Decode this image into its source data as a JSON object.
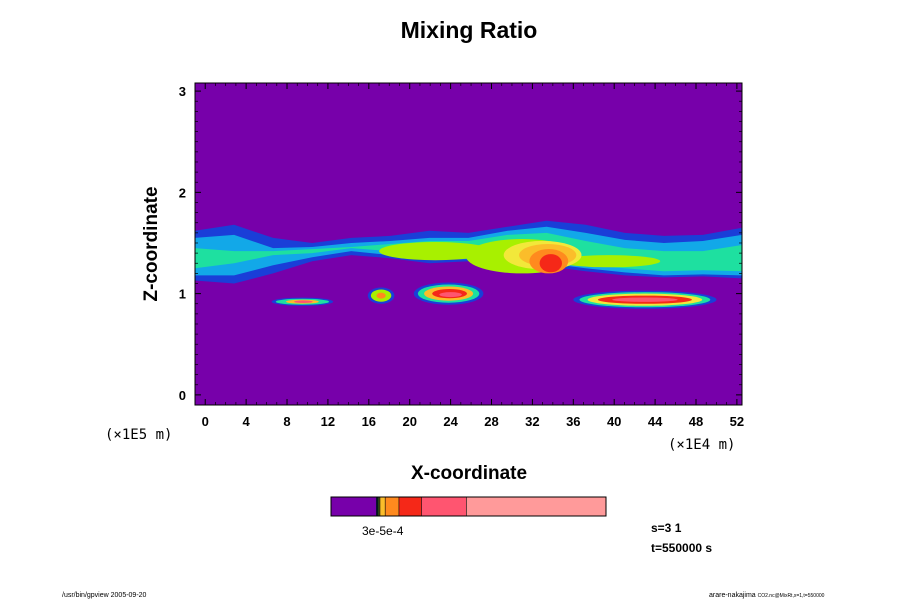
{
  "chart_data": {
    "type": "heatmap",
    "title": "Mixing Ratio",
    "xlabel": "X-coordinate",
    "ylabel": "Z-coordinate",
    "x_unit": "(×1E4 m)",
    "y_unit": "(×1E5 m)",
    "xlim": [
      -1,
      52.5
    ],
    "ylim": [
      -0.1,
      3.08
    ],
    "x_ticks": [
      "0",
      "4",
      "8",
      "12",
      "16",
      "20",
      "24",
      "28",
      "32",
      "36",
      "40",
      "44",
      "48",
      "52"
    ],
    "x_tick_values": [
      0,
      4,
      8,
      12,
      16,
      20,
      24,
      28,
      32,
      36,
      40,
      44,
      48,
      52
    ],
    "y_ticks": [
      "0",
      "1",
      "2",
      "3"
    ],
    "y_tick_values": [
      0,
      1,
      2,
      3
    ],
    "background_color": "#7700aa",
    "levels": [
      {
        "name": "level-1",
        "color": "#1a3ed8"
      },
      {
        "name": "level-2",
        "color": "#12a8e8"
      },
      {
        "name": "level-3",
        "color": "#1ee0a0"
      },
      {
        "name": "level-4",
        "color": "#a8f000"
      },
      {
        "name": "level-5",
        "color": "#f2e83a"
      },
      {
        "name": "level-6",
        "color": "#fbbd2a"
      },
      {
        "name": "level-7",
        "color": "#ff8a1e"
      },
      {
        "name": "level-8",
        "color": "#f52818"
      },
      {
        "name": "level-9",
        "color": "#ff5570"
      }
    ],
    "regions": [
      {
        "shape": "band",
        "level": 0,
        "x": [
          -1,
          52.5
        ],
        "bottom": [
          1.13,
          1.1,
          1.2,
          1.32,
          1.38,
          1.35,
          1.3,
          1.32,
          1.35,
          1.27,
          1.22,
          1.18,
          1.16,
          1.17,
          1.15
        ],
        "top": [
          1.62,
          1.68,
          1.55,
          1.5,
          1.55,
          1.57,
          1.62,
          1.6,
          1.66,
          1.72,
          1.68,
          1.6,
          1.57,
          1.58,
          1.65
        ]
      },
      {
        "shape": "band",
        "level": 1,
        "x": [
          -1,
          52.5
        ],
        "bottom": [
          1.18,
          1.18,
          1.28,
          1.36,
          1.42,
          1.38,
          1.34,
          1.34,
          1.38,
          1.3,
          1.25,
          1.21,
          1.18,
          1.19,
          1.18
        ],
        "top": [
          1.55,
          1.58,
          1.45,
          1.46,
          1.5,
          1.52,
          1.55,
          1.55,
          1.62,
          1.66,
          1.6,
          1.53,
          1.5,
          1.52,
          1.58
        ]
      },
      {
        "shape": "band",
        "level": 2,
        "x": [
          -1,
          52.5
        ],
        "bottom": [
          1.25,
          1.3,
          1.38,
          1.4,
          1.45,
          1.42,
          1.38,
          1.36,
          1.42,
          1.34,
          1.28,
          1.25,
          1.22,
          1.23,
          1.22
        ],
        "top": [
          1.45,
          1.42,
          1.42,
          1.44,
          1.46,
          1.49,
          1.52,
          1.52,
          1.58,
          1.6,
          1.52,
          1.45,
          1.42,
          1.42,
          1.48
        ]
      },
      {
        "shape": "ellipse",
        "level": 3,
        "cx": 22.5,
        "cy": 1.42,
        "rx": 5.5,
        "ry": 0.09
      },
      {
        "shape": "ellipse",
        "level": 3,
        "cx": 31.0,
        "cy": 1.37,
        "rx": 5.5,
        "ry": 0.17
      },
      {
        "shape": "ellipse",
        "level": 3,
        "cx": 39.5,
        "cy": 1.32,
        "rx": 5.0,
        "ry": 0.06
      },
      {
        "shape": "ellipse",
        "level": 4,
        "cx": 33.0,
        "cy": 1.38,
        "rx": 3.8,
        "ry": 0.14
      },
      {
        "shape": "ellipse",
        "level": 5,
        "cx": 33.5,
        "cy": 1.38,
        "rx": 2.8,
        "ry": 0.11
      },
      {
        "shape": "ellipse",
        "level": 6,
        "cx": 33.6,
        "cy": 1.32,
        "rx": 1.9,
        "ry": 0.12
      },
      {
        "shape": "ellipse",
        "level": 7,
        "cx": 33.8,
        "cy": 1.3,
        "rx": 1.1,
        "ry": 0.09
      },
      {
        "shape": "ellipse",
        "level": 0,
        "cx": 9.5,
        "cy": 0.92,
        "rx": 3.0,
        "ry": 0.04
      },
      {
        "shape": "ellipse",
        "level": 2,
        "cx": 9.5,
        "cy": 0.92,
        "rx": 2.6,
        "ry": 0.03
      },
      {
        "shape": "ellipse",
        "level": 5,
        "cx": 9.5,
        "cy": 0.92,
        "rx": 1.6,
        "ry": 0.02
      },
      {
        "shape": "ellipse",
        "level": 8,
        "cx": 9.6,
        "cy": 0.92,
        "rx": 0.9,
        "ry": 0.013
      },
      {
        "shape": "ellipse",
        "level": 0,
        "cx": 17.2,
        "cy": 0.98,
        "rx": 1.3,
        "ry": 0.08
      },
      {
        "shape": "ellipse",
        "level": 3,
        "cx": 17.2,
        "cy": 0.98,
        "rx": 1.0,
        "ry": 0.06
      },
      {
        "shape": "ellipse",
        "level": 6,
        "cx": 17.2,
        "cy": 0.98,
        "rx": 0.45,
        "ry": 0.03
      },
      {
        "shape": "ellipse",
        "level": 0,
        "cx": 23.8,
        "cy": 1.0,
        "rx": 3.4,
        "ry": 0.11
      },
      {
        "shape": "ellipse",
        "level": 2,
        "cx": 23.8,
        "cy": 1.0,
        "rx": 3.0,
        "ry": 0.09
      },
      {
        "shape": "ellipse",
        "level": 5,
        "cx": 23.8,
        "cy": 1.0,
        "rx": 2.4,
        "ry": 0.07
      },
      {
        "shape": "ellipse",
        "level": 7,
        "cx": 23.9,
        "cy": 1.0,
        "rx": 1.7,
        "ry": 0.045
      },
      {
        "shape": "ellipse",
        "level": 8,
        "cx": 24.0,
        "cy": 0.99,
        "rx": 1.1,
        "ry": 0.025
      },
      {
        "shape": "ellipse",
        "level": 0,
        "cx": 43.0,
        "cy": 0.94,
        "rx": 7.0,
        "ry": 0.09
      },
      {
        "shape": "ellipse",
        "level": 2,
        "cx": 43.0,
        "cy": 0.94,
        "rx": 6.4,
        "ry": 0.075
      },
      {
        "shape": "ellipse",
        "level": 4,
        "cx": 43.0,
        "cy": 0.94,
        "rx": 5.6,
        "ry": 0.06
      },
      {
        "shape": "ellipse",
        "level": 7,
        "cx": 43.0,
        "cy": 0.94,
        "rx": 4.6,
        "ry": 0.04
      },
      {
        "shape": "ellipse",
        "level": 8,
        "cx": 43.0,
        "cy": 0.94,
        "rx": 3.2,
        "ry": 0.022
      }
    ]
  },
  "colorbar": {
    "segments": [
      {
        "name": "background",
        "color": "#7700aa",
        "weight": 16.5
      },
      {
        "name": "level-1",
        "color": "#1a3ed8",
        "weight": 0.25
      },
      {
        "name": "level-2",
        "color": "#12a8e8",
        "weight": 0.25
      },
      {
        "name": "level-3",
        "color": "#1ee0a0",
        "weight": 0.25
      },
      {
        "name": "level-4",
        "color": "#a8f000",
        "weight": 0.25
      },
      {
        "name": "level-5",
        "color": "#f2e83a",
        "weight": 0.3
      },
      {
        "name": "level-6",
        "color": "#fbbd2a",
        "weight": 1.9
      },
      {
        "name": "level-7",
        "color": "#ff8a1e",
        "weight": 5.0
      },
      {
        "name": "level-8",
        "color": "#f52818",
        "weight": 8.2
      },
      {
        "name": "level-9",
        "color": "#ff5570",
        "weight": 16.3
      },
      {
        "name": "level-10",
        "color": "#ff9a9a",
        "weight": 50.8
      }
    ],
    "tick_text": "3e-5e-4"
  },
  "info": {
    "s_label": "s=3 1",
    "t_label": "t=550000 s"
  },
  "footer": {
    "left": "/usr/bin/gpview 2005-09-20",
    "right_main": "arare-nakajima",
    "right_small": "CO2.nc@MixRt,x=1,t=550000"
  }
}
